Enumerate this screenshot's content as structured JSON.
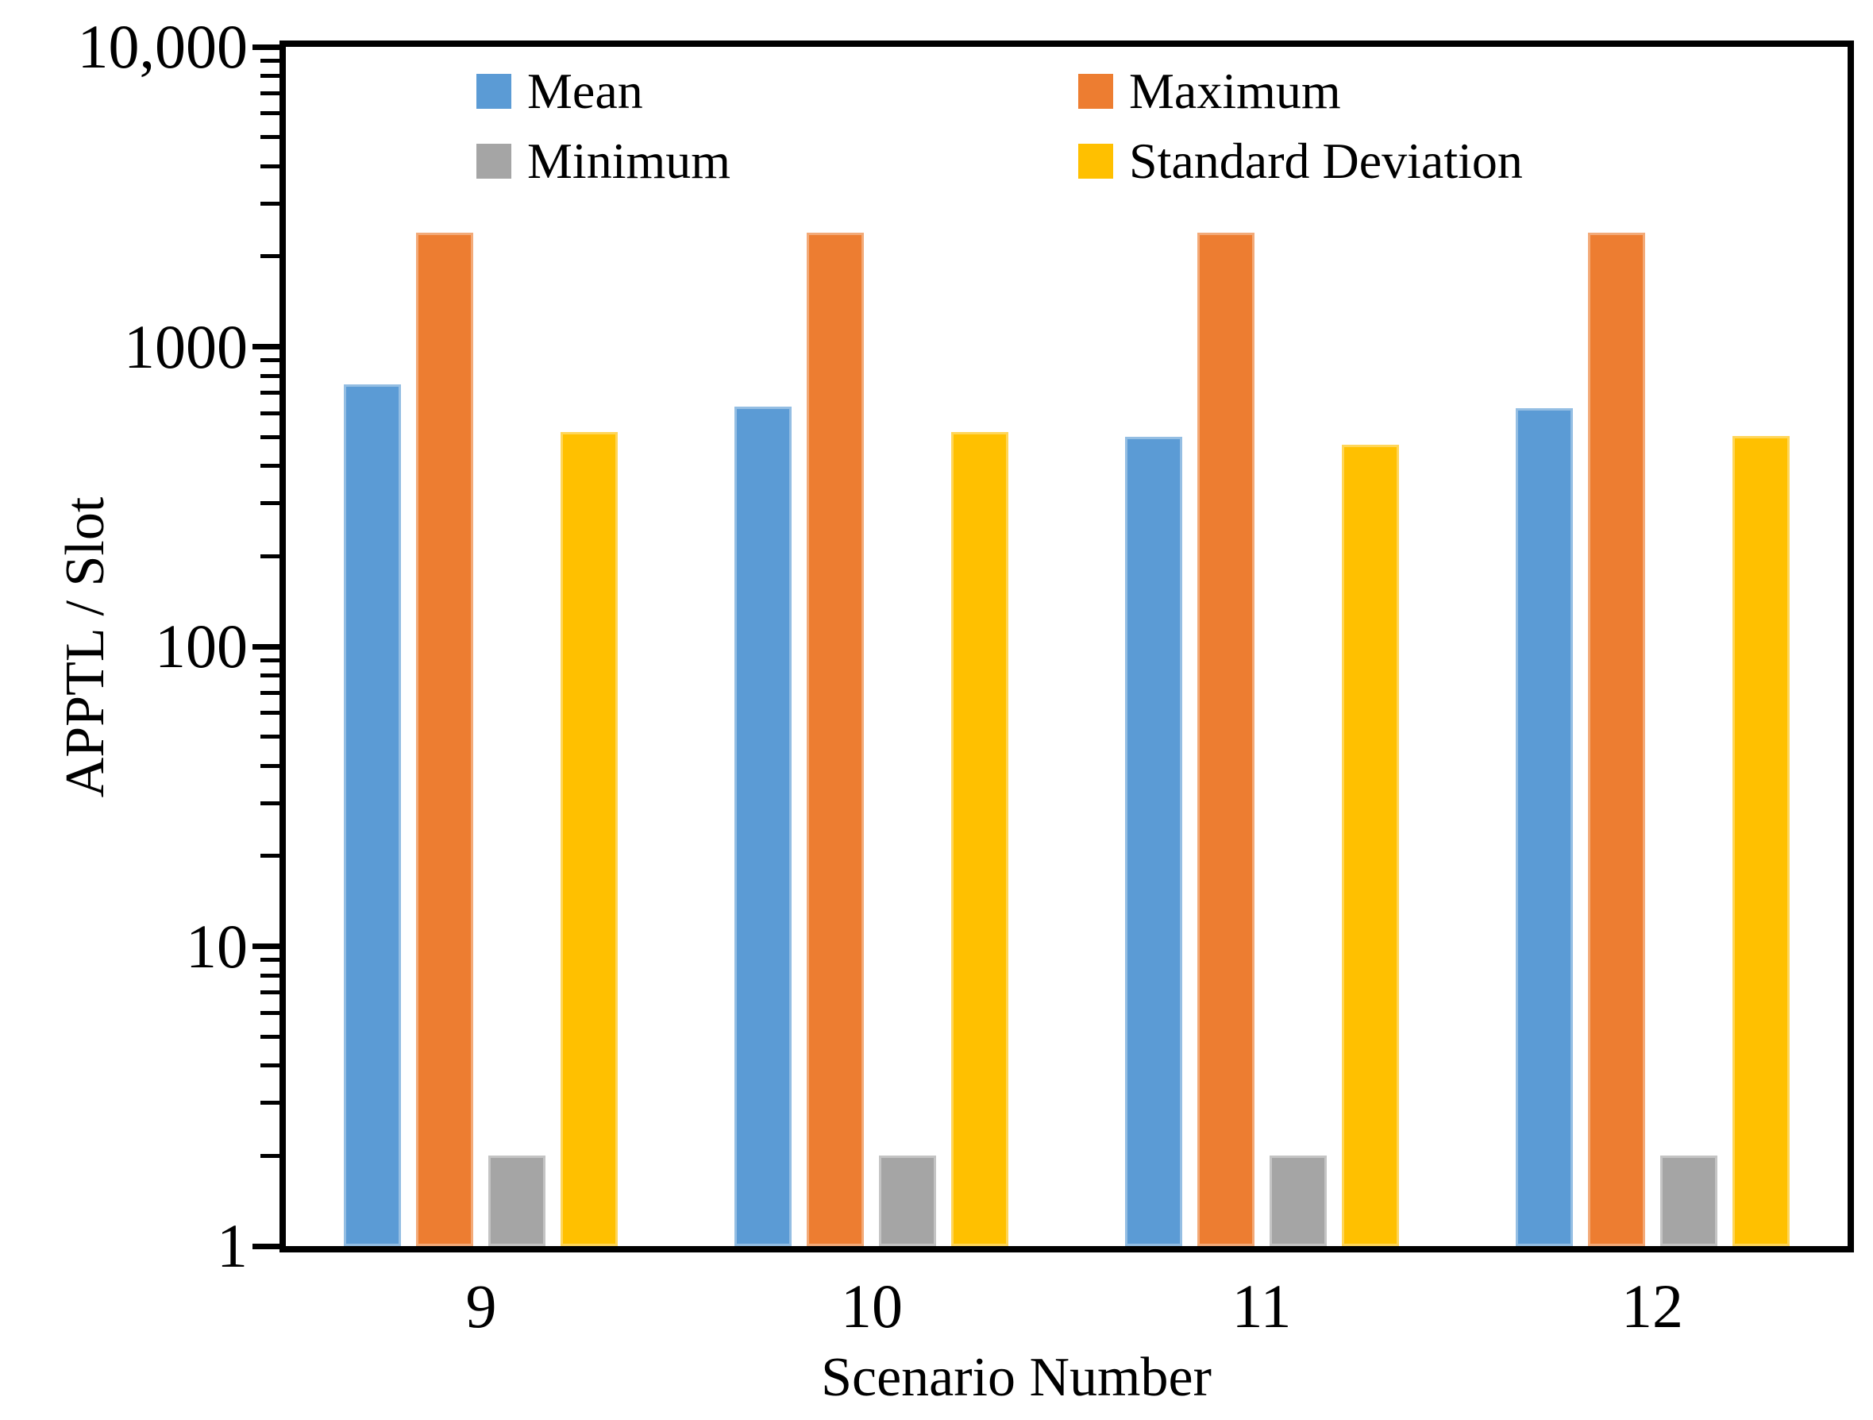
{
  "figure": {
    "background": "#ffffff"
  },
  "y_axis": {
    "title": "APPTL / Slot",
    "scale": "log",
    "min": 1,
    "max": 10000,
    "tick_labels": [
      "10,000",
      "1000",
      "100",
      "10",
      "1"
    ],
    "tick_values": [
      10000,
      1000,
      100,
      10,
      1
    ]
  },
  "x_axis": {
    "title": "Scenario Number",
    "categories": [
      "9",
      "10",
      "11",
      "12"
    ]
  },
  "legend": {
    "items": [
      {
        "label": "Mean",
        "color": "#5B9BD5",
        "col": 0,
        "row": 0
      },
      {
        "label": "Maximum",
        "color": "#ED7D31",
        "col": 1,
        "row": 0
      },
      {
        "label": "Minimum",
        "color": "#A5A5A5",
        "col": 0,
        "row": 1
      },
      {
        "label": "Standard Deviation",
        "color": "#FFC000",
        "col": 1,
        "row": 1
      }
    ]
  },
  "chart_data": {
    "type": "bar",
    "categories": [
      "9",
      "10",
      "11",
      "12"
    ],
    "series": [
      {
        "name": "Mean",
        "color": "#5B9BD5",
        "values": [
          750,
          630,
          500,
          625
        ]
      },
      {
        "name": "Maximum",
        "color": "#ED7D31",
        "values": [
          2400,
          2400,
          2400,
          2400
        ]
      },
      {
        "name": "Minimum",
        "color": "#A5A5A5",
        "values": [
          2,
          2,
          2,
          2
        ]
      },
      {
        "name": "Standard Deviation",
        "color": "#FFC000",
        "values": [
          520,
          520,
          470,
          505
        ]
      }
    ],
    "title": "",
    "xlabel": "Scenario Number",
    "ylabel": "APPTL / Slot",
    "yscale": "log",
    "ylim": [
      1,
      10000
    ],
    "grid": false,
    "legend_position": "top-inside-two-columns"
  }
}
